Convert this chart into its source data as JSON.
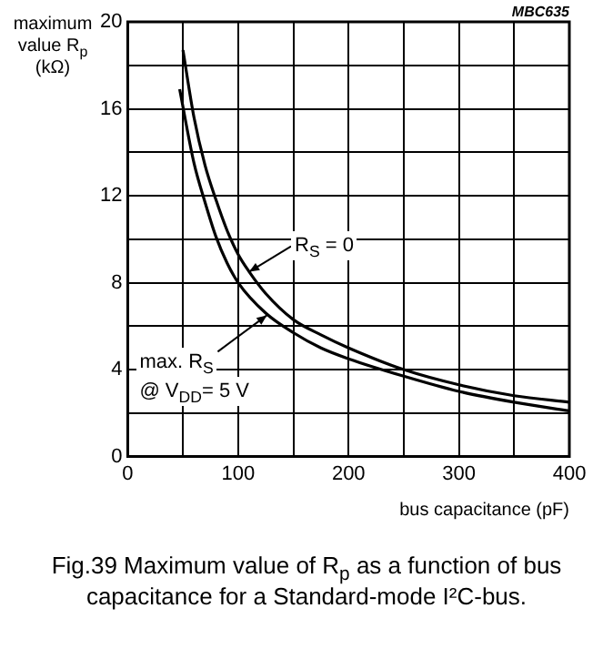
{
  "chart_data": {
    "type": "line",
    "title": "Fig.39  Maximum value of R$_{p}$ as a function of bus capacitance for a Standard-mode I²C-bus.",
    "xlabel": "bus capacitance (pF)",
    "ylabel": "maximum value R$_{p}$ (kΩ)",
    "xlim": [
      0,
      400
    ],
    "ylim": [
      0,
      20
    ],
    "xticks": [
      0,
      {
        "value": 50,
        "label": null
      },
      100,
      {
        "value": 150,
        "label": null
      },
      200,
      {
        "value": 250,
        "label": null
      },
      300,
      {
        "value": 350,
        "label": null
      },
      400
    ],
    "yticks": [
      0,
      {
        "value": 2,
        "label": null
      },
      4,
      {
        "value": 6,
        "label": null
      },
      8,
      {
        "value": 10,
        "label": null
      },
      12,
      {
        "value": 14,
        "label": null
      },
      16,
      {
        "value": 18,
        "label": null
      },
      20
    ],
    "grid": true,
    "legend": false,
    "marker": "none",
    "line_style": "solid",
    "series": [
      {
        "color": "#000000",
        "x": [
          50,
          60,
          70,
          80,
          90,
          100,
          110,
          125,
          150,
          175,
          200,
          250,
          300,
          350,
          400
        ],
        "values": [
          18.7,
          15.6,
          13.4,
          11.8,
          10.4,
          9.3,
          8.5,
          7.5,
          6.3,
          5.6,
          5.0,
          4.0,
          3.3,
          2.8,
          2.5
        ]
      },
      {
        "color": "#000000",
        "x": [
          47,
          60,
          70,
          80,
          90,
          100,
          125,
          150,
          175,
          200,
          250,
          300,
          350,
          400
        ],
        "values": [
          16.9,
          13.5,
          11.7,
          10.1,
          8.9,
          8.0,
          6.6,
          5.7,
          5.0,
          4.5,
          3.7,
          3.0,
          2.5,
          2.1
        ]
      }
    ],
    "annotations": [
      {
        "text": "R$_{S}$ = 0",
        "x": 110,
        "y": 8.5
      },
      {
        "text": "max. R$_{S}$",
        "x": 126,
        "y": 6.5
      },
      "@ V$_{DD}$= 5 V",
      "MBC635"
    ]
  }
}
